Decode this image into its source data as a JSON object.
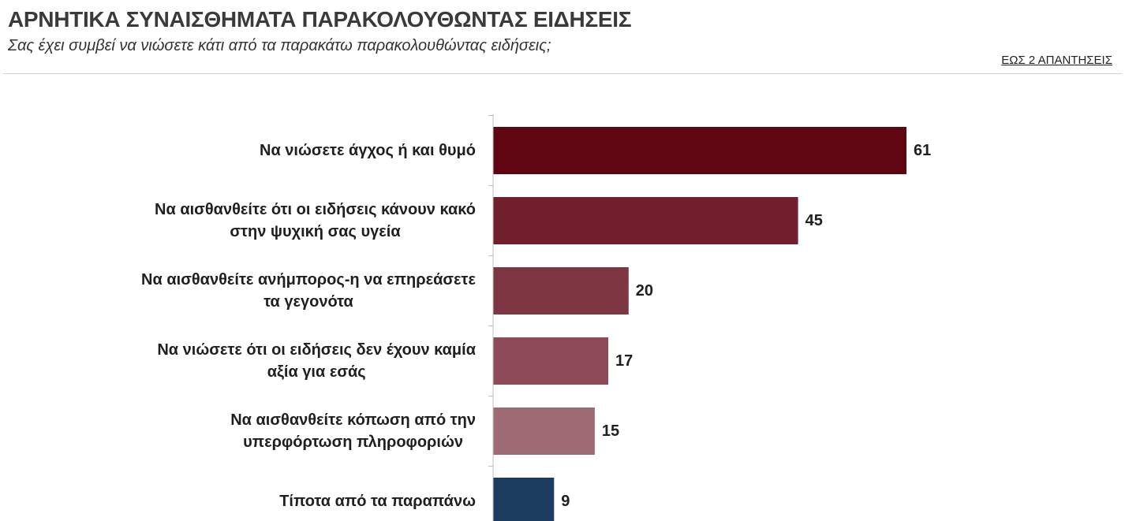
{
  "header": {
    "title": "ΑΡΝΗΤΙΚΑ ΣΥΝΑΙΣΘΗΜΑΤΑ ΠΑΡΑΚΟΛΟΥΘΩΝΤΑΣ ΕΙΔΗΣΕΙΣ",
    "subtitle": "Σας έχει συμβεί να νιώσετε κάτι από τα παρακάτω παρακολουθώντας ειδήσεις;",
    "note": "ΕΩΣ 2 ΑΠΑΝΤΗΣΕΙΣ"
  },
  "chart_data": {
    "type": "bar",
    "orientation": "horizontal",
    "categories": [
      [
        "Να νιώσετε άγχος ή και θυμό"
      ],
      [
        "Να αισθανθείτε ότι οι ειδήσεις κάνουν κακό",
        "στην ψυχική σας υγεία"
      ],
      [
        "Να αισθανθείτε ανήμπορος-η να επηρεάσετε",
        "τα γεγονότα"
      ],
      [
        "Να νιώσετε ότι οι ειδήσεις δεν έχουν καμία",
        "αξία για εσάς"
      ],
      [
        "Να αισθανθείτε κόπωση από την",
        "υπερφόρτωση πληροφοριών"
      ],
      [
        "Τίποτα από τα παραπάνω"
      ]
    ],
    "values": [
      61,
      45,
      20,
      17,
      15,
      9
    ],
    "colors": [
      "#600612",
      "#721f2d",
      "#7f3643",
      "#8e4b57",
      "#9e6b72",
      "#1c3c60"
    ],
    "xlim": [
      0,
      100
    ],
    "grid": false,
    "legend": "none"
  }
}
